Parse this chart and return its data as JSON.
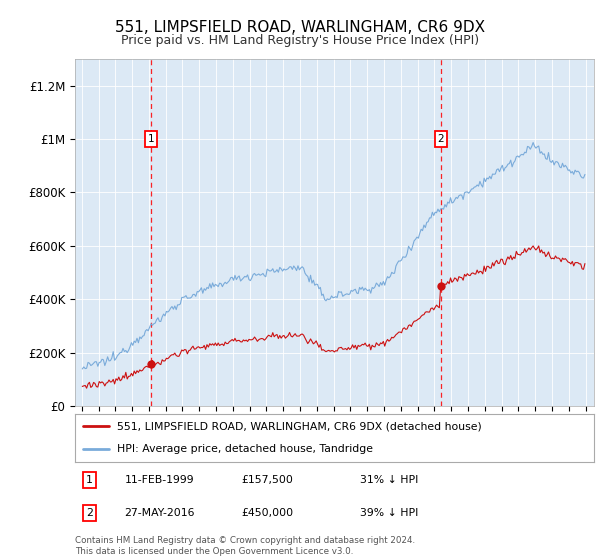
{
  "title": "551, LIMPSFIELD ROAD, WARLINGHAM, CR6 9DX",
  "subtitle": "Price paid vs. HM Land Registry's House Price Index (HPI)",
  "hpi_color": "#7aabda",
  "price_color": "#cc1111",
  "plot_bg_color": "#dce9f5",
  "ylim": [
    0,
    1300000
  ],
  "yticks": [
    0,
    200000,
    400000,
    600000,
    800000,
    1000000,
    1200000
  ],
  "ytick_labels": [
    "£0",
    "£200K",
    "£400K",
    "£600K",
    "£800K",
    "£1M",
    "£1.2M"
  ],
  "sale1_year": 1999,
  "sale1_month": 2,
  "sale1_price": 157500,
  "sale2_year": 2016,
  "sale2_month": 5,
  "sale2_price": 450000,
  "legend_line1": "551, LIMPSFIELD ROAD, WARLINGHAM, CR6 9DX (detached house)",
  "legend_line2": "HPI: Average price, detached house, Tandridge",
  "table_row1": [
    "1",
    "11-FEB-1999",
    "£157,500",
    "31% ↓ HPI"
  ],
  "table_row2": [
    "2",
    "27-MAY-2016",
    "£450,000",
    "39% ↓ HPI"
  ],
  "footer": "Contains HM Land Registry data © Crown copyright and database right 2024.\nThis data is licensed under the Open Government Licence v3.0.",
  "xmin": 1994.6,
  "xmax": 2025.5
}
